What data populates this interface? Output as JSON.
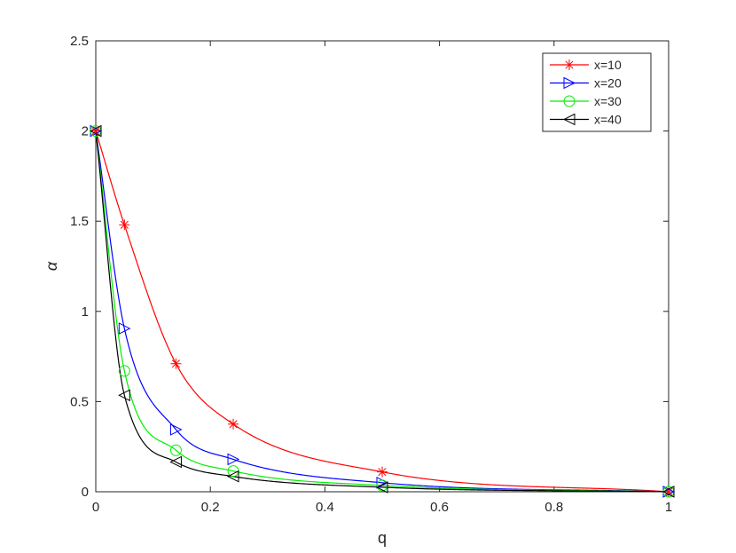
{
  "chart_data": {
    "type": "line",
    "title": "",
    "xlabel": "q",
    "ylabel": "α",
    "xlim": [
      0,
      1
    ],
    "ylim": [
      0,
      2.5
    ],
    "xticks": [
      "0",
      "0.2",
      "0.4",
      "0.6",
      "0.8",
      "1"
    ],
    "yticks": [
      "0",
      "0.5",
      "1",
      "1.5",
      "2",
      "2.5"
    ],
    "grid": false,
    "legend_position": "top-right",
    "series": [
      {
        "name": "x=10",
        "color": "#ff0000",
        "marker": "asterisk",
        "x": [
          0,
          0.05,
          0.14,
          0.24,
          0.5,
          1
        ],
        "y": [
          2,
          1.48,
          0.71,
          0.375,
          0.11,
          0
        ]
      },
      {
        "name": "x=20",
        "color": "#0000ff",
        "marker": "triangle-right",
        "x": [
          0,
          0.05,
          0.14,
          0.24,
          0.5,
          1
        ],
        "y": [
          2,
          0.905,
          0.345,
          0.18,
          0.05,
          0
        ]
      },
      {
        "name": "x=30",
        "color": "#00ee00",
        "marker": "circle",
        "x": [
          0,
          0.05,
          0.14,
          0.24,
          0.5,
          1
        ],
        "y": [
          2,
          0.67,
          0.23,
          0.115,
          0.035,
          0
        ]
      },
      {
        "name": "x=40",
        "color": "#000000",
        "marker": "triangle-left",
        "x": [
          0,
          0.05,
          0.14,
          0.24,
          0.5,
          1
        ],
        "y": [
          2,
          0.535,
          0.165,
          0.085,
          0.025,
          0
        ]
      }
    ]
  }
}
